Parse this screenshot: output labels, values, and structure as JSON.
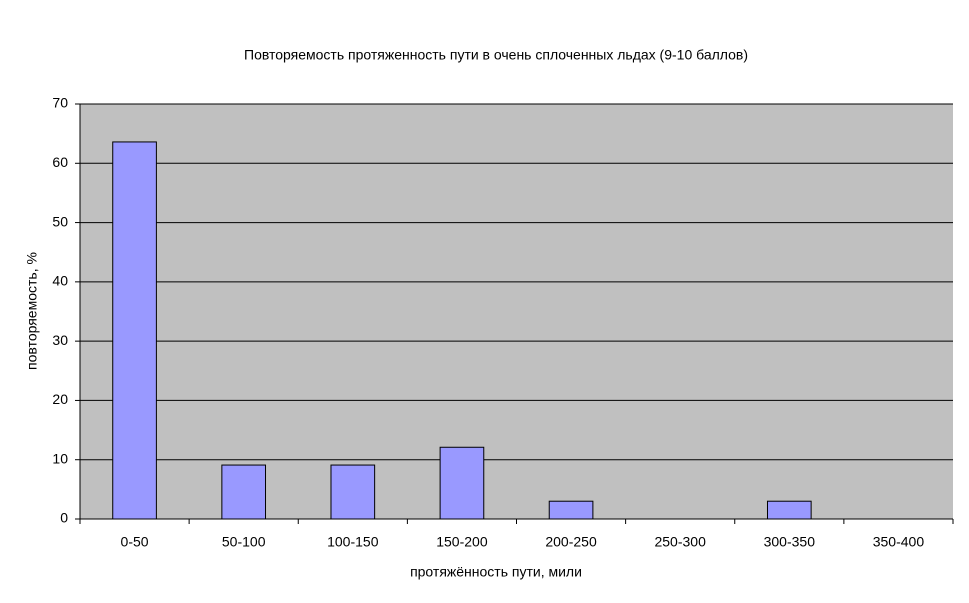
{
  "chart_data": {
    "type": "bar",
    "title": "Повторяемость протяженность пути в очень сплоченных льдах (9-10 баллов)",
    "x_label": "протяжённость пути, мили",
    "y_label": "повторяемость, %",
    "categories": [
      "0-50",
      "50-100",
      "100-150",
      "150-200",
      "200-250",
      "250-300",
      "300-350",
      "350-400"
    ],
    "values": [
      63.6,
      9.1,
      9.1,
      12.1,
      3.0,
      0,
      3.0,
      0
    ],
    "color": "#9999ff",
    "ylim": [
      0,
      70
    ],
    "yticks": [
      0,
      10,
      20,
      30,
      40,
      50,
      60,
      70
    ],
    "grid": true
  }
}
